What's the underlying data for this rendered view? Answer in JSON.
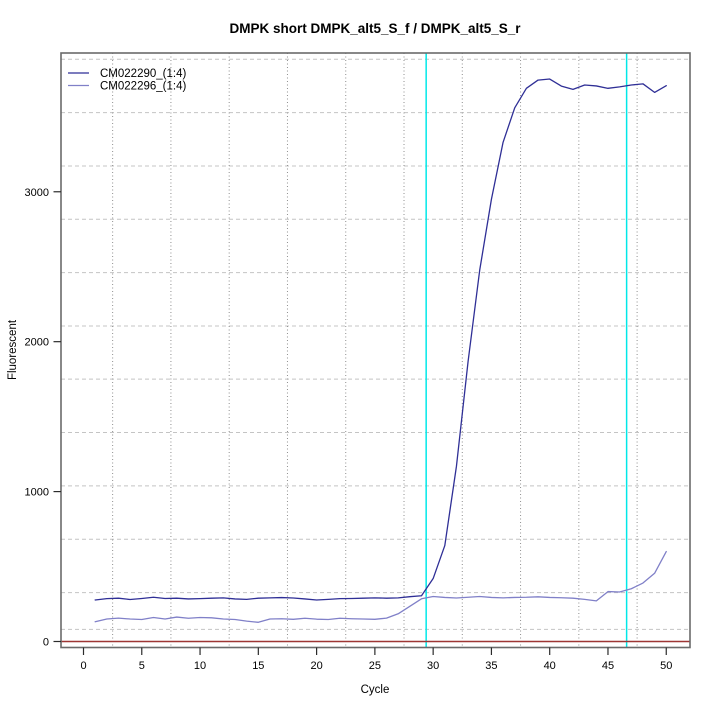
{
  "title": "DMPK short DMPK_alt5_S_f / DMPK_alt5_S_r",
  "x_axis": {
    "label": "Cycle",
    "ticks": [
      0,
      5,
      10,
      15,
      20,
      25,
      30,
      35,
      40,
      45,
      50
    ]
  },
  "y_axis": {
    "label": "Fluorescent",
    "ticks": [
      0,
      1000,
      2000,
      3000
    ]
  },
  "legend": [
    {
      "label": "CM022290_(1:4)",
      "color": "#2f2f96"
    },
    {
      "label": "CM022296_(1:4)",
      "color": "#8080c8"
    }
  ],
  "chart_data": {
    "type": "line",
    "title": "DMPK short DMPK_alt5_S_f / DMPK_alt5_S_r",
    "xlabel": "Cycle",
    "ylabel": "Fluorescent",
    "xlim": [
      -1.9,
      52.0
    ],
    "ylim": [
      -40,
      3930
    ],
    "grid": true,
    "legend_position": "top-left",
    "x": [
      1,
      2,
      3,
      4,
      5,
      6,
      7,
      8,
      9,
      10,
      11,
      12,
      13,
      14,
      15,
      16,
      17,
      18,
      19,
      20,
      21,
      22,
      23,
      24,
      25,
      26,
      27,
      28,
      29,
      30,
      31,
      32,
      33,
      34,
      35,
      36,
      37,
      38,
      39,
      40,
      41,
      42,
      43,
      44,
      45,
      46,
      47,
      48,
      49,
      50
    ],
    "series": [
      {
        "name": "CM022290_(1:4)",
        "color": "#2f2f96",
        "y": [
          277,
          286,
          289,
          280,
          287,
          295,
          287,
          289,
          284,
          286,
          289,
          291,
          284,
          281,
          289,
          291,
          293,
          290,
          284,
          277,
          281,
          286,
          287,
          289,
          291,
          289,
          291,
          299,
          305,
          420,
          640,
          1170,
          1870,
          2480,
          2950,
          3330,
          3560,
          3690,
          3745,
          3752,
          3705,
          3683,
          3712,
          3706,
          3690,
          3700,
          3712,
          3720,
          3663,
          3708
        ]
      },
      {
        "name": "CM022296_(1:4)",
        "color": "#8080c8",
        "y": [
          132,
          150,
          156,
          150,
          147,
          160,
          150,
          163,
          155,
          160,
          158,
          150,
          147,
          136,
          128,
          150,
          152,
          148,
          155,
          149,
          147,
          155,
          152,
          150,
          148,
          156,
          185,
          235,
          285,
          300,
          294,
          290,
          295,
          300,
          294,
          291,
          294,
          295,
          298,
          294,
          292,
          289,
          281,
          271,
          333,
          330,
          352,
          390,
          455,
          600
        ]
      }
    ],
    "threshold_cycles": [
      29.4,
      46.6
    ],
    "hgrid_values": [
      3884,
      3528,
      3172,
      2817,
      2461,
      2105,
      1750,
      1394,
      1038,
      682,
      326,
      81
    ],
    "vgrid_cycles": [
      2.5,
      7.5,
      12.5,
      17.5,
      22.5,
      27.5,
      32.5,
      37.5,
      42.5,
      47.5
    ],
    "colors": {
      "ct_marker": "#00e8e8",
      "zero_line": "#9e3634",
      "grid_h": "#c4c4c4",
      "grid_v": "#8f8f8f",
      "box": "#6a6a6a",
      "tick": "#2b2b2b",
      "text": "#000000"
    }
  }
}
